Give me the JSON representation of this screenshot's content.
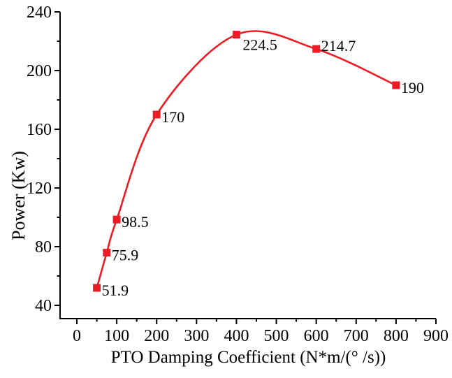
{
  "chart_data": {
    "type": "line",
    "title": "",
    "xlabel": "PTO Damping Coefficient (N*m/(° /s))",
    "ylabel": "Power (Kw)",
    "x": [
      50,
      75,
      100,
      200,
      400,
      600,
      800
    ],
    "y": [
      51.9,
      75.9,
      98.5,
      170,
      224.5,
      214.7,
      190
    ],
    "point_labels": [
      "51.9",
      "75.9",
      "98.5",
      "170",
      "224.5",
      "214.7",
      "190"
    ],
    "label_positions": [
      "right",
      "right",
      "right",
      "right",
      "below-right",
      "above-right",
      "right"
    ],
    "series": [
      {
        "name": "Power",
        "color": "#ed1c24",
        "marker": "square",
        "line_style": "smooth"
      }
    ],
    "xlim": [
      0,
      900
    ],
    "ylim": [
      40,
      240
    ],
    "x_major_ticks": [
      0,
      100,
      200,
      300,
      400,
      500,
      600,
      700,
      800,
      900
    ],
    "x_minor_ticks": [
      50,
      150,
      250,
      350,
      450,
      550,
      650,
      750,
      850
    ],
    "y_major_ticks": [
      40,
      80,
      120,
      160,
      200,
      240
    ],
    "y_minor_ticks": [
      60,
      100,
      140,
      180,
      220
    ],
    "grid": false,
    "legend": "none",
    "axis_color": "#000000",
    "text_color": "#000000",
    "background": "#ffffff"
  }
}
